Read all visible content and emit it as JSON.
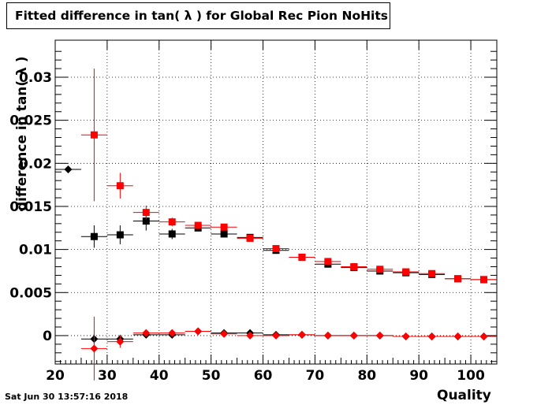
{
  "header": {
    "title": "Fitted difference in tan( λ ) for Global Rec Pion NoHits",
    "timestamp": "Sat Jun 30 13:57:16 2018"
  },
  "chart_data": {
    "type": "scatter",
    "title": "Fitted difference in tan( λ ) for Global Rec Pion NoHits",
    "xlabel": "Quality",
    "ylabel": "difference in tan( λ )",
    "xlim": [
      20,
      105
    ],
    "ylim": [
      -0.0033,
      0.0343
    ],
    "grid": true,
    "x_ticks": [
      20,
      30,
      40,
      50,
      60,
      70,
      80,
      90,
      100
    ],
    "x_tick_labels": [
      "20",
      "30",
      "40",
      "50",
      "60",
      "70",
      "80",
      "90",
      "100"
    ],
    "y_ticks": [
      0,
      0.005,
      0.01,
      0.015,
      0.02,
      0.025,
      0.03
    ],
    "y_tick_labels": [
      "0",
      "0.005",
      "0.01",
      "0.015",
      "0.02",
      "0.025",
      "0.03"
    ],
    "series": [
      {
        "marker": "square",
        "color": "#000000",
        "points": [
          {
            "x": 27.5,
            "y": 0.0115,
            "err": 0.0013
          },
          {
            "x": 32.5,
            "y": 0.0117,
            "err": 0.0011
          },
          {
            "x": 37.5,
            "y": 0.0133,
            "err": 0.0011
          },
          {
            "x": 42.5,
            "y": 0.0118,
            "err": 0.0006
          },
          {
            "x": 47.5,
            "y": 0.0125,
            "err": 0.0004
          },
          {
            "x": 52.5,
            "y": 0.0118,
            "err": 0.0003
          },
          {
            "x": 57.5,
            "y": 0.0114,
            "err": 0.0002
          },
          {
            "x": 62.5,
            "y": 0.0099,
            "err": 0.0002
          },
          {
            "x": 67.5,
            "y": 0.0091,
            "err": 0.0002
          },
          {
            "x": 72.5,
            "y": 0.0083,
            "err": 0.0002
          },
          {
            "x": 77.5,
            "y": 0.0079,
            "err": 0.0002
          },
          {
            "x": 82.5,
            "y": 0.0075,
            "err": 0.0002
          },
          {
            "x": 87.5,
            "y": 0.0073,
            "err": 0.0002
          },
          {
            "x": 92.5,
            "y": 0.0071,
            "err": 0.0002
          },
          {
            "x": 97.5,
            "y": 0.0066,
            "err": 0.0002
          },
          {
            "x": 102.5,
            "y": 0.0065,
            "err": 0.0002
          }
        ]
      },
      {
        "marker": "square",
        "color": "#ff0000",
        "points": [
          {
            "x": 27.5,
            "y": 0.0233,
            "err": 0.0077
          },
          {
            "x": 32.5,
            "y": 0.0174,
            "err": 0.0015
          },
          {
            "x": 37.5,
            "y": 0.0143,
            "err": 0.0008
          },
          {
            "x": 42.5,
            "y": 0.0132,
            "err": 0.0005
          },
          {
            "x": 47.5,
            "y": 0.0128,
            "err": 0.0004
          },
          {
            "x": 52.5,
            "y": 0.0126,
            "err": 0.0003
          },
          {
            "x": 57.5,
            "y": 0.0113,
            "err": 0.0002
          },
          {
            "x": 62.5,
            "y": 0.0101,
            "err": 0.0002
          },
          {
            "x": 67.5,
            "y": 0.0091,
            "err": 0.0002
          },
          {
            "x": 72.5,
            "y": 0.0086,
            "err": 0.0002
          },
          {
            "x": 77.5,
            "y": 0.008,
            "err": 0.0002
          },
          {
            "x": 82.5,
            "y": 0.0077,
            "err": 0.0002
          },
          {
            "x": 87.5,
            "y": 0.0074,
            "err": 0.0002
          },
          {
            "x": 92.5,
            "y": 0.0072,
            "err": 0.0002
          },
          {
            "x": 97.5,
            "y": 0.0066,
            "err": 0.0002
          },
          {
            "x": 102.5,
            "y": 0.0065,
            "err": 0.0002
          }
        ]
      },
      {
        "marker": "diamond",
        "color": "#000000",
        "points": [
          {
            "x": 22.5,
            "y": 0.0193,
            "err": 0.0001
          },
          {
            "x": 27.5,
            "y": -0.0004,
            "err": 0.0006
          },
          {
            "x": 32.5,
            "y": -0.0004,
            "err": 0.0005
          },
          {
            "x": 37.5,
            "y": 0.0001,
            "err": 0.0003
          },
          {
            "x": 42.5,
            "y": 0.0001,
            "err": 0.0002
          },
          {
            "x": 47.5,
            "y": 0.0005,
            "err": 0.0002
          },
          {
            "x": 52.5,
            "y": 0.0003,
            "err": 0.0001
          },
          {
            "x": 57.5,
            "y": 0.0003,
            "err": 0.0001
          },
          {
            "x": 62.5,
            "y": 0.0001,
            "err": 0.0001
          },
          {
            "x": 67.5,
            "y": 0.0001,
            "err": 0.0001
          },
          {
            "x": 72.5,
            "y": 0.0,
            "err": 0.0001
          },
          {
            "x": 77.5,
            "y": 0.0,
            "err": 0.0001
          },
          {
            "x": 82.5,
            "y": 0.0,
            "err": 0.0001
          },
          {
            "x": 87.5,
            "y": -0.0001,
            "err": 0.0001
          },
          {
            "x": 92.5,
            "y": -0.0001,
            "err": 0.0001
          },
          {
            "x": 97.5,
            "y": -0.0001,
            "err": 0.0001
          },
          {
            "x": 102.5,
            "y": -0.0001,
            "err": 0.0001
          }
        ]
      },
      {
        "marker": "diamond",
        "color": "#ff0000",
        "points": [
          {
            "x": 27.5,
            "y": -0.0015,
            "err": 0.0037
          },
          {
            "x": 32.5,
            "y": -0.0007,
            "err": 0.0007
          },
          {
            "x": 37.5,
            "y": 0.0003,
            "err": 0.0003
          },
          {
            "x": 42.5,
            "y": 0.0003,
            "err": 0.0002
          },
          {
            "x": 47.5,
            "y": 0.0005,
            "err": 0.0002
          },
          {
            "x": 52.5,
            "y": 0.0002,
            "err": 0.0001
          },
          {
            "x": 57.5,
            "y": 0.0,
            "err": 0.0001
          },
          {
            "x": 62.5,
            "y": 0.0,
            "err": 0.0001
          },
          {
            "x": 67.5,
            "y": 0.0001,
            "err": 0.0001
          },
          {
            "x": 72.5,
            "y": 0.0,
            "err": 0.0001
          },
          {
            "x": 77.5,
            "y": 0.0,
            "err": 0.0001
          },
          {
            "x": 82.5,
            "y": 0.0,
            "err": 0.0001
          },
          {
            "x": 87.5,
            "y": -0.0001,
            "err": 0.0001
          },
          {
            "x": 92.5,
            "y": -0.0001,
            "err": 0.0001
          },
          {
            "x": 97.5,
            "y": -0.0001,
            "err": 0.0001
          },
          {
            "x": 102.5,
            "y": -0.0001,
            "err": 0.0001
          }
        ]
      }
    ]
  }
}
